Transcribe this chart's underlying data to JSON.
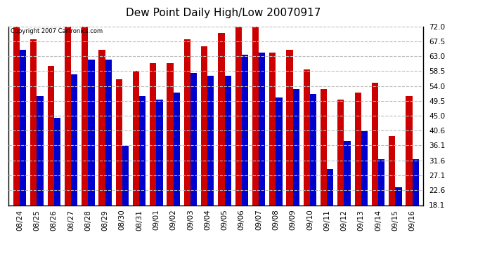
{
  "title": "Dew Point Daily High/Low 20070917",
  "copyright": "Copyright 2007 Cartronics.com",
  "dates": [
    "08/24",
    "08/25",
    "08/26",
    "08/27",
    "08/28",
    "08/29",
    "08/30",
    "08/31",
    "09/01",
    "09/02",
    "09/03",
    "09/04",
    "09/05",
    "09/06",
    "09/07",
    "09/08",
    "09/09",
    "09/10",
    "09/11",
    "09/12",
    "09/13",
    "09/14",
    "09/15",
    "09/16"
  ],
  "highs": [
    72.0,
    68.0,
    60.0,
    72.0,
    72.0,
    65.0,
    56.0,
    58.5,
    61.0,
    61.0,
    68.0,
    66.0,
    70.0,
    72.0,
    73.0,
    64.0,
    65.0,
    59.0,
    53.0,
    50.0,
    52.0,
    55.0,
    39.0,
    51.0
  ],
  "lows": [
    65.0,
    51.0,
    44.5,
    57.5,
    62.0,
    62.0,
    36.0,
    51.0,
    50.0,
    52.0,
    58.0,
    57.0,
    57.0,
    63.5,
    64.0,
    50.5,
    53.0,
    51.5,
    29.0,
    37.5,
    40.5,
    32.0,
    23.5,
    32.0
  ],
  "high_color": "#cc0000",
  "low_color": "#0000cc",
  "background_color": "#ffffff",
  "grid_color": "#bbbbbb",
  "yticks": [
    18.1,
    22.6,
    27.1,
    31.6,
    36.1,
    40.6,
    45.0,
    49.5,
    54.0,
    58.5,
    63.0,
    67.5,
    72.0
  ],
  "ymin": 18.1,
  "ymax": 72.0,
  "bar_width": 0.38
}
